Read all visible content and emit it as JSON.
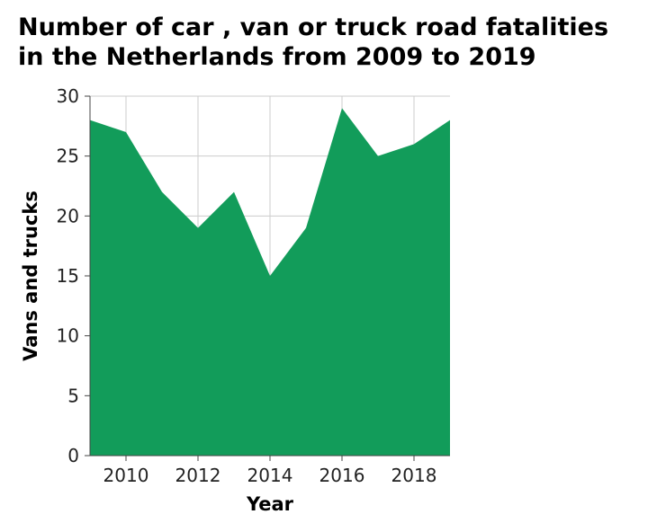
{
  "chart_data": {
    "type": "area",
    "title": "Number of car , van or truck road fatalities in the Netherlands from 2009 to 2019",
    "xlabel": "Year",
    "ylabel": "Vans and trucks",
    "x": [
      2009,
      2010,
      2011,
      2012,
      2013,
      2014,
      2015,
      2016,
      2017,
      2018,
      2019
    ],
    "series": [
      {
        "values": [
          28,
          27,
          22,
          19,
          22,
          15,
          19,
          29,
          25,
          26,
          28
        ],
        "color": "#129c5a"
      }
    ],
    "xlim": [
      2009,
      2019
    ],
    "ylim": [
      0,
      30
    ],
    "xticks": [
      2010,
      2012,
      2014,
      2016,
      2018
    ],
    "yticks": [
      0,
      5,
      10,
      15,
      20,
      25,
      30
    ],
    "grid": true
  }
}
